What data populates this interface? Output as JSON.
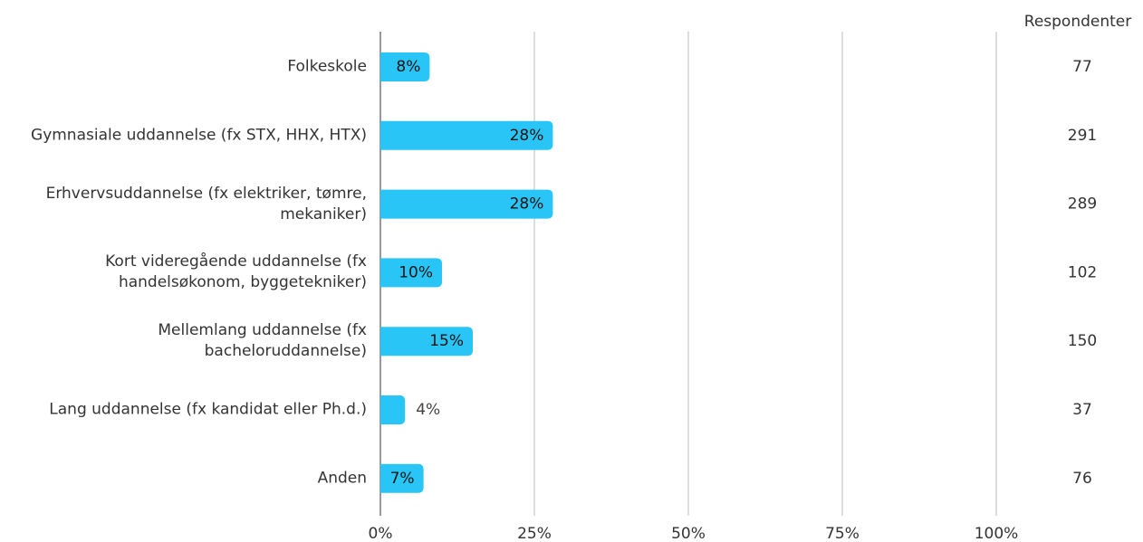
{
  "chart_data": {
    "type": "bar",
    "orientation": "horizontal",
    "categories": [
      "Folkeskole",
      "Gymnasiale uddannelse (fx STX, HHX, HTX)",
      "Erhvervsuddannelse (fx elektriker, tømre, mekaniker)",
      "Kort videregående uddannelse (fx handelsøkonom, byggetekniker)",
      "Mellemlang uddannelse (fx bacheloruddannelse)",
      "Lang uddannelse (fx kandidat eller Ph.d.)",
      "Anden"
    ],
    "values": [
      8,
      28,
      28,
      10,
      15,
      4,
      7
    ],
    "value_labels": [
      "8%",
      "28%",
      "28%",
      "10%",
      "15%",
      "4%",
      "7%"
    ],
    "color": "#29c5f6",
    "xlim": [
      0,
      100
    ],
    "xticks": [
      {
        "value": 0,
        "label": "0%"
      },
      {
        "value": 25,
        "label": "25%"
      },
      {
        "value": 50,
        "label": "50%"
      },
      {
        "value": 75,
        "label": "75%"
      },
      {
        "value": 100,
        "label": "100%"
      }
    ],
    "grid": true,
    "respondents_header": "Respondenter",
    "respondents": [
      77,
      291,
      289,
      102,
      150,
      37,
      76
    ]
  }
}
